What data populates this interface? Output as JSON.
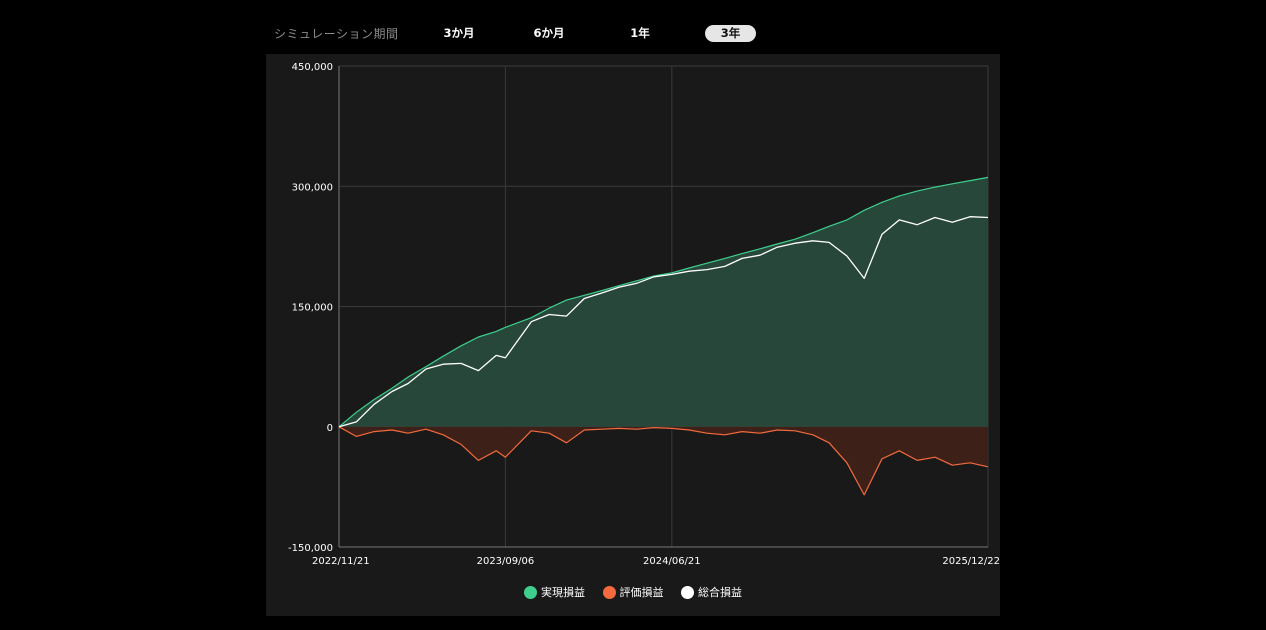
{
  "period": {
    "label": "シミュレーション期間",
    "options": [
      "3か月",
      "6か月",
      "1年",
      "3年"
    ],
    "selected": "3年"
  },
  "chart_data": {
    "type": "area",
    "x_start": "2022/11/21",
    "x_end": "2025/12/22",
    "xticks": [
      "2022/11/21",
      "2023/09/06",
      "2024/06/21",
      "2025/12/22"
    ],
    "ylim": [
      -150000,
      450000
    ],
    "yticks": [
      -150000,
      0,
      150000,
      300000,
      450000
    ],
    "ytick_labels": [
      "-150,000",
      "0",
      "150,000",
      "300,000",
      "450,000"
    ],
    "grid": true,
    "legend_position": "bottom",
    "series": [
      {
        "name": "実現損益",
        "color": "#3ecf8e",
        "fill": "#27473a",
        "x": [
          "2022/11/21",
          "2022/12/21",
          "2023/01/21",
          "2023/02/21",
          "2023/03/21",
          "2023/04/21",
          "2023/05/21",
          "2023/06/21",
          "2023/07/21",
          "2023/08/21",
          "2023/09/06",
          "2023/10/21",
          "2023/11/21",
          "2023/12/21",
          "2024/01/21",
          "2024/02/21",
          "2024/03/21",
          "2024/04/21",
          "2024/05/21",
          "2024/06/21",
          "2024/07/21",
          "2024/08/21",
          "2024/09/21",
          "2024/10/21",
          "2024/11/21",
          "2024/12/21",
          "2025/01/21",
          "2025/02/21",
          "2025/03/21",
          "2025/04/21",
          "2025/05/21",
          "2025/06/21",
          "2025/07/21",
          "2025/08/21",
          "2025/09/21",
          "2025/10/21",
          "2025/11/21",
          "2025/12/22"
        ],
        "values": [
          0,
          18000,
          34000,
          48000,
          62000,
          75000,
          88000,
          101000,
          112000,
          119000,
          124000,
          136000,
          148000,
          158000,
          164000,
          170000,
          176000,
          182000,
          188000,
          192000,
          198000,
          204000,
          210000,
          216000,
          222000,
          228000,
          234000,
          242000,
          250000,
          258000,
          270000,
          280000,
          288000,
          294000,
          299000,
          303000,
          307000,
          311000
        ]
      },
      {
        "name": "評価損益",
        "color": "#f26a3d",
        "fill": "#3d2119",
        "x": [
          "2022/11/21",
          "2022/12/21",
          "2023/01/21",
          "2023/02/21",
          "2023/03/21",
          "2023/04/21",
          "2023/05/21",
          "2023/06/21",
          "2023/07/21",
          "2023/08/21",
          "2023/09/06",
          "2023/10/21",
          "2023/11/21",
          "2023/12/21",
          "2024/01/21",
          "2024/02/21",
          "2024/03/21",
          "2024/04/21",
          "2024/05/21",
          "2024/06/21",
          "2024/07/21",
          "2024/08/21",
          "2024/09/21",
          "2024/10/21",
          "2024/11/21",
          "2024/12/21",
          "2025/01/21",
          "2025/02/21",
          "2025/03/21",
          "2025/04/21",
          "2025/05/21",
          "2025/06/21",
          "2025/07/21",
          "2025/08/21",
          "2025/09/21",
          "2025/10/21",
          "2025/11/21",
          "2025/12/22"
        ],
        "values": [
          0,
          -12000,
          -6000,
          -4000,
          -8000,
          -3000,
          -10000,
          -22000,
          -42000,
          -30000,
          -38000,
          -5000,
          -8000,
          -20000,
          -4000,
          -3000,
          -2000,
          -3000,
          -1000,
          -2000,
          -4000,
          -8000,
          -10000,
          -6000,
          -8000,
          -4000,
          -5000,
          -10000,
          -20000,
          -45000,
          -85000,
          -40000,
          -30000,
          -42000,
          -38000,
          -48000,
          -45000,
          -50000
        ]
      },
      {
        "name": "総合損益",
        "color": "#ffffff",
        "x": [
          "2022/11/21",
          "2022/12/21",
          "2023/01/21",
          "2023/02/21",
          "2023/03/21",
          "2023/04/21",
          "2023/05/21",
          "2023/06/21",
          "2023/07/21",
          "2023/08/21",
          "2023/09/06",
          "2023/10/21",
          "2023/11/21",
          "2023/12/21",
          "2024/01/21",
          "2024/02/21",
          "2024/03/21",
          "2024/04/21",
          "2024/05/21",
          "2024/06/21",
          "2024/07/21",
          "2024/08/21",
          "2024/09/21",
          "2024/10/21",
          "2024/11/21",
          "2024/12/21",
          "2025/01/21",
          "2025/02/21",
          "2025/03/21",
          "2025/04/21",
          "2025/05/21",
          "2025/06/21",
          "2025/07/21",
          "2025/08/21",
          "2025/09/21",
          "2025/10/21",
          "2025/11/21",
          "2025/12/22"
        ],
        "values": [
          0,
          6000,
          28000,
          44000,
          54000,
          72000,
          78000,
          79000,
          70000,
          89000,
          86000,
          131000,
          140000,
          138000,
          160000,
          167000,
          174000,
          179000,
          187000,
          190000,
          194000,
          196000,
          200000,
          210000,
          214000,
          224000,
          229000,
          232000,
          230000,
          213000,
          185000,
          240000,
          258000,
          252000,
          261000,
          255000,
          262000,
          261000
        ]
      }
    ]
  }
}
